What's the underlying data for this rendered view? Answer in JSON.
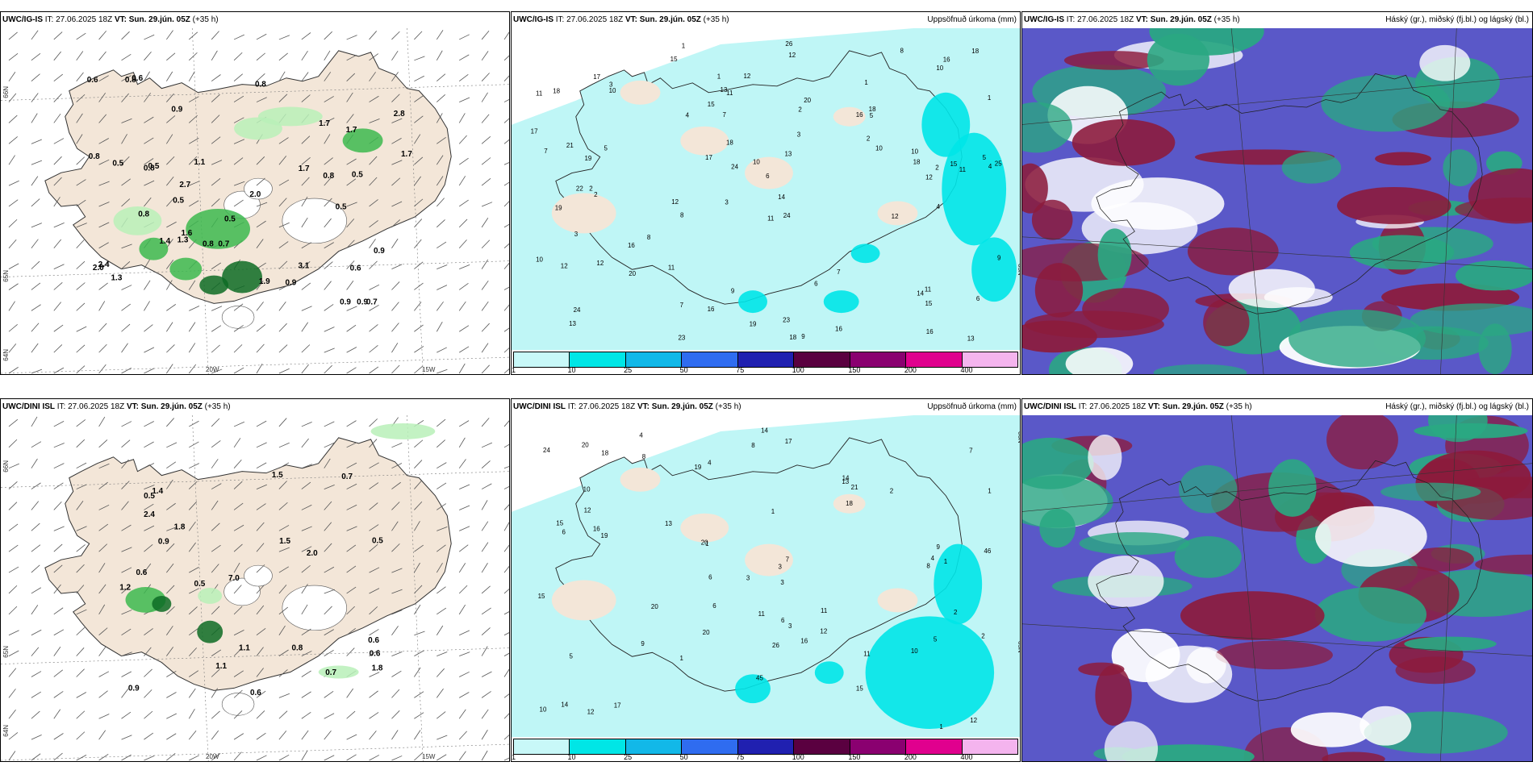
{
  "rows": [
    {
      "wind": {
        "model": "UWC/IG-IS",
        "rest": " IT: 27.06.2025 18Z ",
        "vt_bold": "VT: Sun. 29.jún. 05Z",
        "lead": " (+35 h)",
        "values": [
          "0.5",
          "0.8",
          "0.8",
          "0.5",
          "0.7",
          "0.9",
          "0.7",
          "0.5",
          "1.3",
          "0.8",
          "0.5",
          "0.8",
          "0.6",
          "0.9",
          "2.7",
          "3.1",
          "2.0",
          "1.7",
          "2.8",
          "1.1",
          "0.9",
          "0.5",
          "0.9",
          "1.4",
          "0.6",
          "1.7",
          "1.9",
          "2.4",
          "1.7",
          "2.0",
          "1.6",
          "0.8",
          "1.3",
          "0.9",
          "1.7",
          "0.8",
          "0.5",
          "0.6",
          "0.8"
        ]
      },
      "precip": {
        "model": "UWC/IG-IS",
        "rest": " IT: 27.06.2025 18Z ",
        "vt_bold": "VT: Sun. 29.jún. 05Z",
        "lead": " (+35 h)",
        "title": "Uppsöfnuð úrkoma (mm)",
        "values": [
          "1",
          "1",
          "4",
          "3",
          "24",
          "2",
          "18",
          "16",
          "19",
          "2",
          "6",
          "13",
          "15",
          "12",
          "18",
          "9",
          "9",
          "8",
          "10",
          "16",
          "19",
          "22",
          "25",
          "15",
          "10",
          "21",
          "24",
          "18",
          "11",
          "12",
          "14",
          "20",
          "12",
          "17",
          "7",
          "9",
          "10",
          "16",
          "18",
          "12",
          "24",
          "23",
          "16",
          "17",
          "19",
          "5",
          "15",
          "18",
          "17",
          "14",
          "13",
          "12",
          "13",
          "10",
          "12",
          "20",
          "18",
          "10",
          "16",
          "7",
          "6",
          "4",
          "3",
          "11",
          "11",
          "7",
          "2",
          "2",
          "4",
          "1",
          "3",
          "1",
          "5",
          "2",
          "3",
          "5",
          "7",
          "10",
          "11",
          "8",
          "26",
          "23",
          "16",
          "11",
          "15",
          "11",
          "13",
          "12",
          "8",
          "6"
        ]
      },
      "cloud": {
        "model": "UWC/IG-IS",
        "rest": " IT: 27.06.2025 18Z ",
        "vt_bold": "VT: Sun. 29.jún. 05Z",
        "lead": " (+35 h)",
        "title": "Háský (gr.), miðský (fj.bl.) og lágský (bl.)"
      }
    },
    {
      "wind": {
        "model": "UWC/DINI ISL",
        "rest": " IT: 27.06.2025 18Z ",
        "vt_bold": "VT: Sun. 29.jún. 05Z",
        "lead": " (+35 h)",
        "values": [
          "0.8",
          "0.6",
          "0.5",
          "1.1",
          "1.8",
          "2.4",
          "1.8",
          "0.7",
          "0.6",
          "1.5",
          "0.9",
          "0.9",
          "2.0",
          "1.5",
          "7.0",
          "0.6",
          "1.2",
          "0.7",
          "1.1",
          "1.4",
          "0.5",
          "0.6",
          "0.5"
        ]
      },
      "precip": {
        "model": "UWC/DINI ISL",
        "rest": " IT: 27.06.2025 18Z ",
        "vt_bold": "VT: Sun. 29.jún. 05Z",
        "lead": " (+35 h)",
        "title": "Uppsöfnuð úrkoma (mm)",
        "values": [
          "2",
          "3",
          "4",
          "4",
          "1",
          "3",
          "20",
          "6",
          "12",
          "11",
          "8",
          "9",
          "7",
          "15",
          "18",
          "24",
          "6",
          "15",
          "12",
          "16",
          "20",
          "17",
          "14",
          "11",
          "12",
          "13",
          "20",
          "21",
          "19",
          "16",
          "14",
          "17",
          "13",
          "10",
          "20",
          "46",
          "19",
          "45",
          "10",
          "26",
          "11",
          "3",
          "6",
          "5",
          "8",
          "7",
          "3",
          "2",
          "1",
          "1",
          "1",
          "1",
          "1",
          "2",
          "4",
          "14",
          "15",
          "18",
          "9",
          "10",
          "12",
          "5",
          "8",
          "6"
        ]
      },
      "cloud": {
        "model": "UWC/DINI ISL",
        "rest": " IT: 27.06.2025 18Z ",
        "vt_bold": "VT: Sun. 29.jún. 05Z",
        "lead": " (+35 h)",
        "title": "Háský (gr.), miðský (fj.bl.) og lágský (bl.)"
      }
    }
  ],
  "axes": {
    "lat66": "66N",
    "lat65": "65N",
    "lat64": "64N",
    "lon20": "20W",
    "lon15": "15W"
  },
  "colorbar": {
    "ticks": [
      "1",
      "10",
      "25",
      "50",
      "75",
      "100",
      "150",
      "200",
      "400"
    ],
    "colors": [
      "#c8f8f8",
      "#00e6e6",
      "#12b8e8",
      "#2f6cf0",
      "#2020b0",
      "#5a0040",
      "#8a0070",
      "#e0008e",
      "#f4b4ee"
    ]
  },
  "colors": {
    "land": "#f3e6d8",
    "green_light": "#b9f0b9",
    "green_mid": "#3cb84f",
    "green_dark": "#0d6b24",
    "precip_light": "#bff6f6",
    "precip_cyan": "#00e5e8",
    "cloud_blue": "#5a58c8",
    "cloud_maroon": "#8c1b3c",
    "cloud_green": "#2aa882",
    "cloud_white": "#ffffff"
  }
}
